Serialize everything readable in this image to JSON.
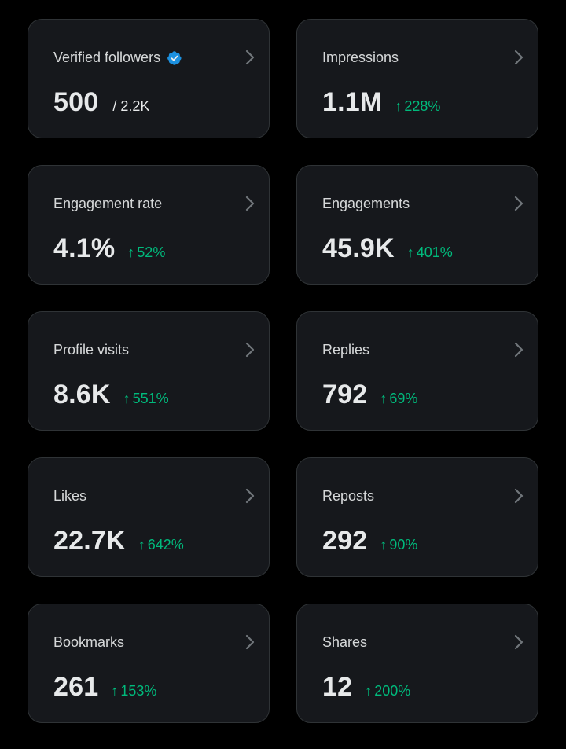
{
  "colors": {
    "background": "#000000",
    "card_background": "#16181c",
    "card_border": "#2f3336",
    "text_primary": "#e7e9ea",
    "chevron": "#71767b",
    "positive_change": "#00ba7c",
    "verified_badge": "#1d9bf0"
  },
  "icons": {
    "chevron": "chevron-right-icon",
    "verified": "verified-badge-icon",
    "arrow": "arrow-up-icon"
  },
  "arrow_glyph": "↑",
  "cards": [
    {
      "label": "Verified followers",
      "value": "500",
      "total": "/ 2.2K",
      "change": "",
      "verified": true
    },
    {
      "label": "Impressions",
      "value": "1.1M",
      "total": "",
      "change": "228%"
    },
    {
      "label": "Engagement rate",
      "value": "4.1%",
      "total": "",
      "change": "52%"
    },
    {
      "label": "Engagements",
      "value": "45.9K",
      "total": "",
      "change": "401%"
    },
    {
      "label": "Profile visits",
      "value": "8.6K",
      "total": "",
      "change": "551%"
    },
    {
      "label": "Replies",
      "value": "792",
      "total": "",
      "change": "69%"
    },
    {
      "label": "Likes",
      "value": "22.7K",
      "total": "",
      "change": "642%"
    },
    {
      "label": "Reposts",
      "value": "292",
      "total": "",
      "change": "90%"
    },
    {
      "label": "Bookmarks",
      "value": "261",
      "total": "",
      "change": "153%"
    },
    {
      "label": "Shares",
      "value": "12",
      "total": "",
      "change": "200%"
    }
  ]
}
